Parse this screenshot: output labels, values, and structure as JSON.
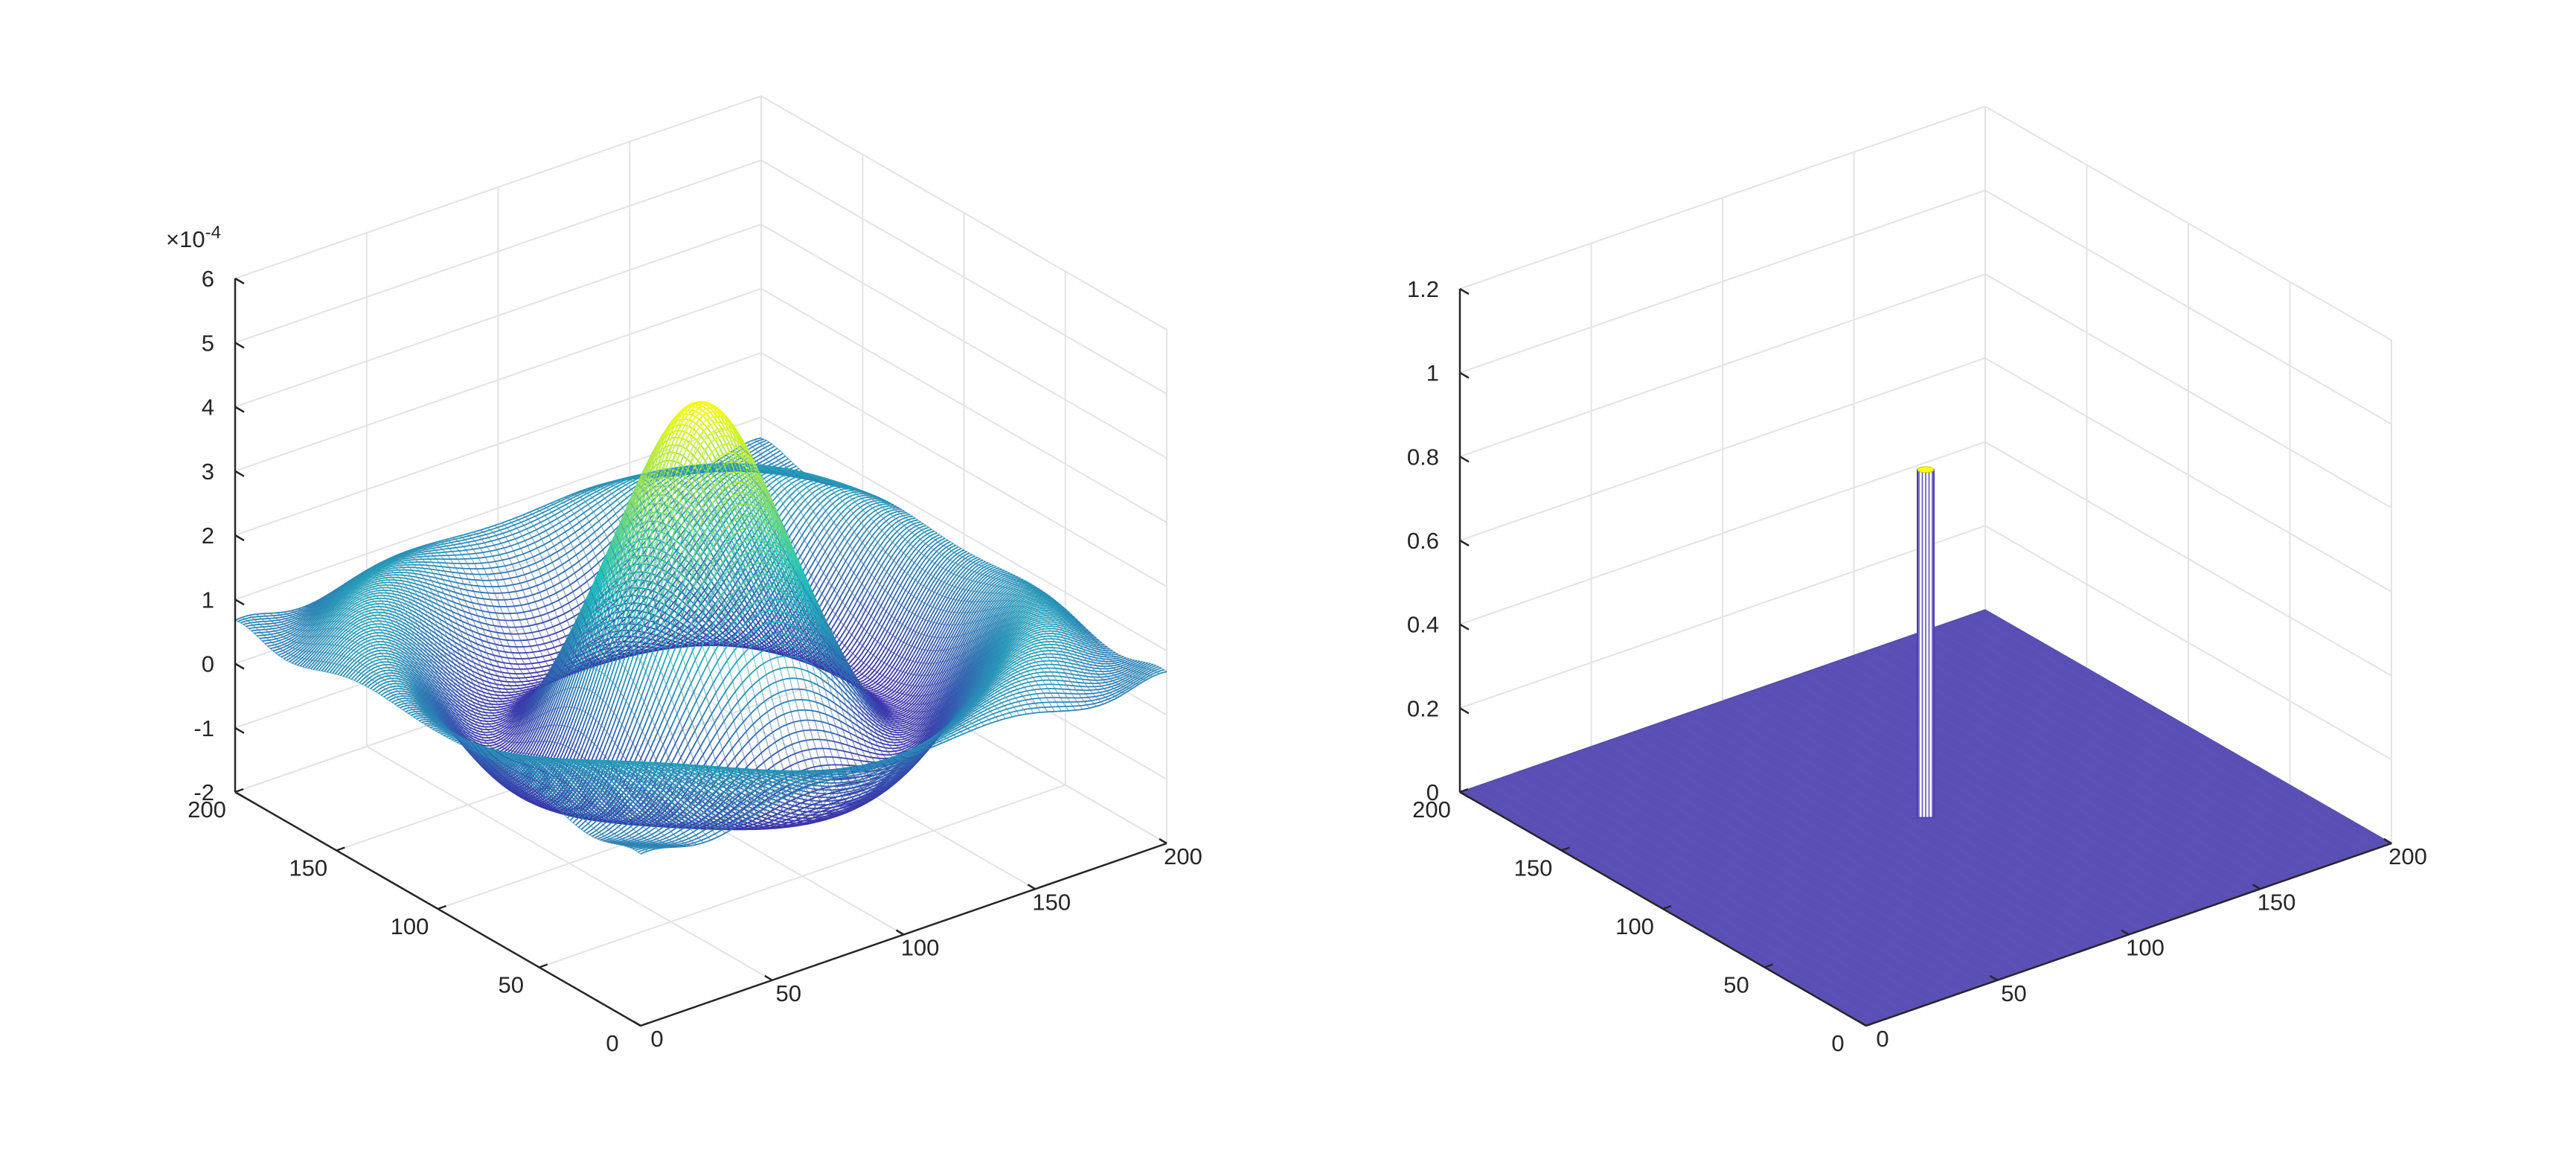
{
  "chart_data": [
    {
      "type": "surface",
      "title": "",
      "xlabel": "",
      "ylabel": "",
      "zlabel": "",
      "xlim": [
        0,
        200
      ],
      "ylim": [
        0,
        200
      ],
      "zlim": [
        -2,
        6
      ],
      "x_ticks": [
        "0",
        "50",
        "100",
        "150",
        "200"
      ],
      "y_ticks": [
        "0",
        "50",
        "100",
        "150",
        "200"
      ],
      "z_ticks": [
        "-2",
        "-1",
        "0",
        "1",
        "2",
        "3",
        "4",
        "5",
        "6"
      ],
      "z_exponent_prefix": "×10",
      "z_exponent": "-4",
      "grid": true,
      "colormap": "parula",
      "surface_description_values": {
        "center": [
          100,
          100
        ],
        "peak_z": 4.3,
        "corner_z": 1.0,
        "min_z": -0.9
      }
    },
    {
      "type": "surface",
      "title": "",
      "xlabel": "",
      "ylabel": "",
      "zlabel": "",
      "xlim": [
        0,
        200
      ],
      "ylim": [
        0,
        200
      ],
      "zlim": [
        0,
        1.2
      ],
      "x_ticks": [
        "0",
        "50",
        "100",
        "150",
        "200"
      ],
      "y_ticks": [
        "0",
        "50",
        "100",
        "150",
        "200"
      ],
      "z_ticks": [
        "0",
        "0.2",
        "0.4",
        "0.6",
        "0.8",
        "1",
        "1.2"
      ],
      "grid": true,
      "colormap": "parula",
      "spike": {
        "x": 100,
        "y": 100,
        "z": 0.83
      },
      "plane_z": 0,
      "plane_color": "#5a4fb5"
    }
  ],
  "colors": {
    "axis": "#262626",
    "grid": "#e3e3e3",
    "plane": "#5a4fb5",
    "parula_low": "#3e26a8",
    "parula_mid": "#1fc3be",
    "parula_high": "#f9fb0e"
  }
}
